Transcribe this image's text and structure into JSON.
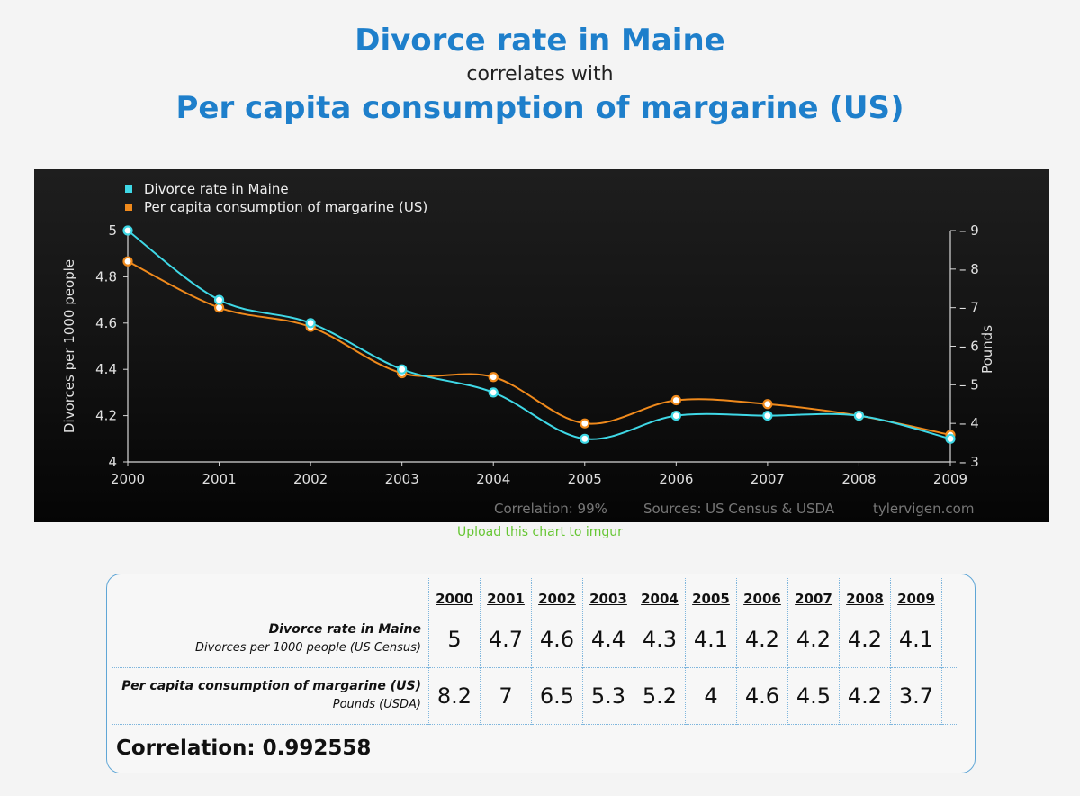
{
  "header": {
    "title": "Divorce rate in Maine",
    "connector": "correlates with",
    "subtitle": "Per capita consumption of margarine (US)"
  },
  "chart_data": {
    "type": "line",
    "x": [
      2000,
      2001,
      2002,
      2003,
      2004,
      2005,
      2006,
      2007,
      2008,
      2009
    ],
    "series": [
      {
        "name": "Divorce rate in Maine",
        "axis": "left",
        "color": "#3fd8e6",
        "values": [
          5,
          4.7,
          4.6,
          4.4,
          4.3,
          4.1,
          4.2,
          4.2,
          4.2,
          4.1
        ]
      },
      {
        "name": "Per capita consumption of margarine (US)",
        "axis": "right",
        "color": "#f08a1c",
        "values": [
          8.2,
          7,
          6.5,
          5.3,
          5.2,
          4,
          4.6,
          4.5,
          4.2,
          3.7
        ]
      }
    ],
    "ylabel_left": "Divorces per 1000 people",
    "ylabel_right": "Pounds",
    "ylim_left": [
      4,
      5
    ],
    "yticks_left": [
      4,
      4.2,
      4.4,
      4.6,
      4.8,
      5
    ],
    "ylim_right": [
      3,
      9
    ],
    "yticks_right": [
      3,
      4,
      5,
      6,
      7,
      8,
      9
    ],
    "xlim": [
      2000,
      2009
    ],
    "legend_position": "top-left",
    "grid": false,
    "footer": {
      "correlation": "Correlation: 99%",
      "sources": "Sources: US Census & USDA",
      "site": "tylervigen.com"
    }
  },
  "upload_link": "Upload this chart to imgur",
  "table": {
    "years": [
      "2000",
      "2001",
      "2002",
      "2003",
      "2004",
      "2005",
      "2006",
      "2007",
      "2008",
      "2009"
    ],
    "rows": [
      {
        "title": "Divorce rate in Maine",
        "subtitle": "Divorces per 1000 people (US Census)",
        "values": [
          "5",
          "4.7",
          "4.6",
          "4.4",
          "4.3",
          "4.1",
          "4.2",
          "4.2",
          "4.2",
          "4.1"
        ]
      },
      {
        "title": "Per capita consumption of margarine (US)",
        "subtitle": "Pounds (USDA)",
        "values": [
          "8.2",
          "7",
          "6.5",
          "5.3",
          "5.2",
          "4",
          "4.6",
          "4.5",
          "4.2",
          "3.7"
        ]
      }
    ],
    "correlation": "Correlation: 0.992558"
  }
}
